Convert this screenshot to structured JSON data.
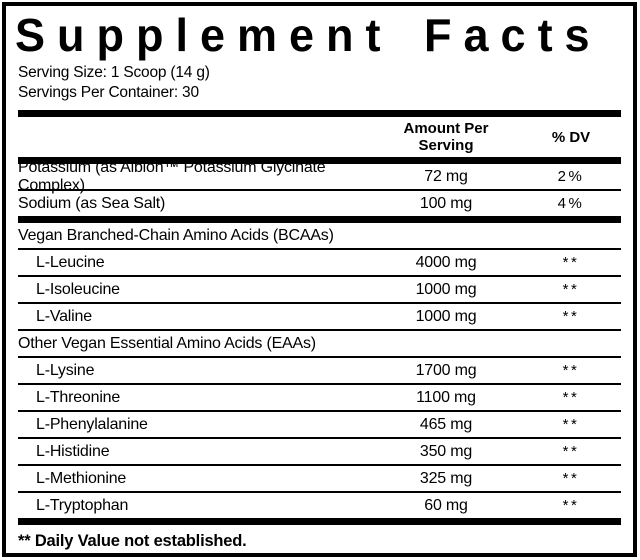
{
  "label": {
    "title": "Supplement Facts",
    "serving_size": "Serving Size: 1 Scoop (14 g)",
    "servings_per_container": "Servings Per Container: 30",
    "footnote": "** Daily Value not established.",
    "colors": {
      "ink": "#000000",
      "background": "#ffffff"
    }
  },
  "table": {
    "columns": {
      "amount": "Amount Per Serving",
      "dv": "% DV"
    },
    "rows": [
      {
        "type": "item",
        "name": "Potassium (as Albion™ Potassium Glycinate Complex)",
        "amount": "72 mg",
        "dv": "2%"
      },
      {
        "type": "item",
        "name": "Sodium (as Sea Salt)",
        "amount": "100 mg",
        "dv": "4%"
      },
      {
        "type": "section",
        "name": "Vegan Branched-Chain Amino Acids (BCAAs)",
        "amount": "",
        "dv": ""
      },
      {
        "type": "sub",
        "name": "L-Leucine",
        "amount": "4000 mg",
        "dv": "**"
      },
      {
        "type": "sub",
        "name": "L-Isoleucine",
        "amount": "1000 mg",
        "dv": "**"
      },
      {
        "type": "sub",
        "name": "L-Valine",
        "amount": "1000 mg",
        "dv": "**"
      },
      {
        "type": "section",
        "name": "Other Vegan Essential Amino Acids (EAAs)",
        "amount": "",
        "dv": ""
      },
      {
        "type": "sub",
        "name": "L-Lysine",
        "amount": "1700 mg",
        "dv": "**"
      },
      {
        "type": "sub",
        "name": "L-Threonine",
        "amount": "1100 mg",
        "dv": "**"
      },
      {
        "type": "sub",
        "name": "L-Phenylalanine",
        "amount": "465 mg",
        "dv": "**"
      },
      {
        "type": "sub",
        "name": "L-Histidine",
        "amount": "350 mg",
        "dv": "**"
      },
      {
        "type": "sub",
        "name": "L-Methionine",
        "amount": "325 mg",
        "dv": "**"
      },
      {
        "type": "sub",
        "name": "L-Tryptophan",
        "amount": "60 mg",
        "dv": "**"
      }
    ]
  }
}
